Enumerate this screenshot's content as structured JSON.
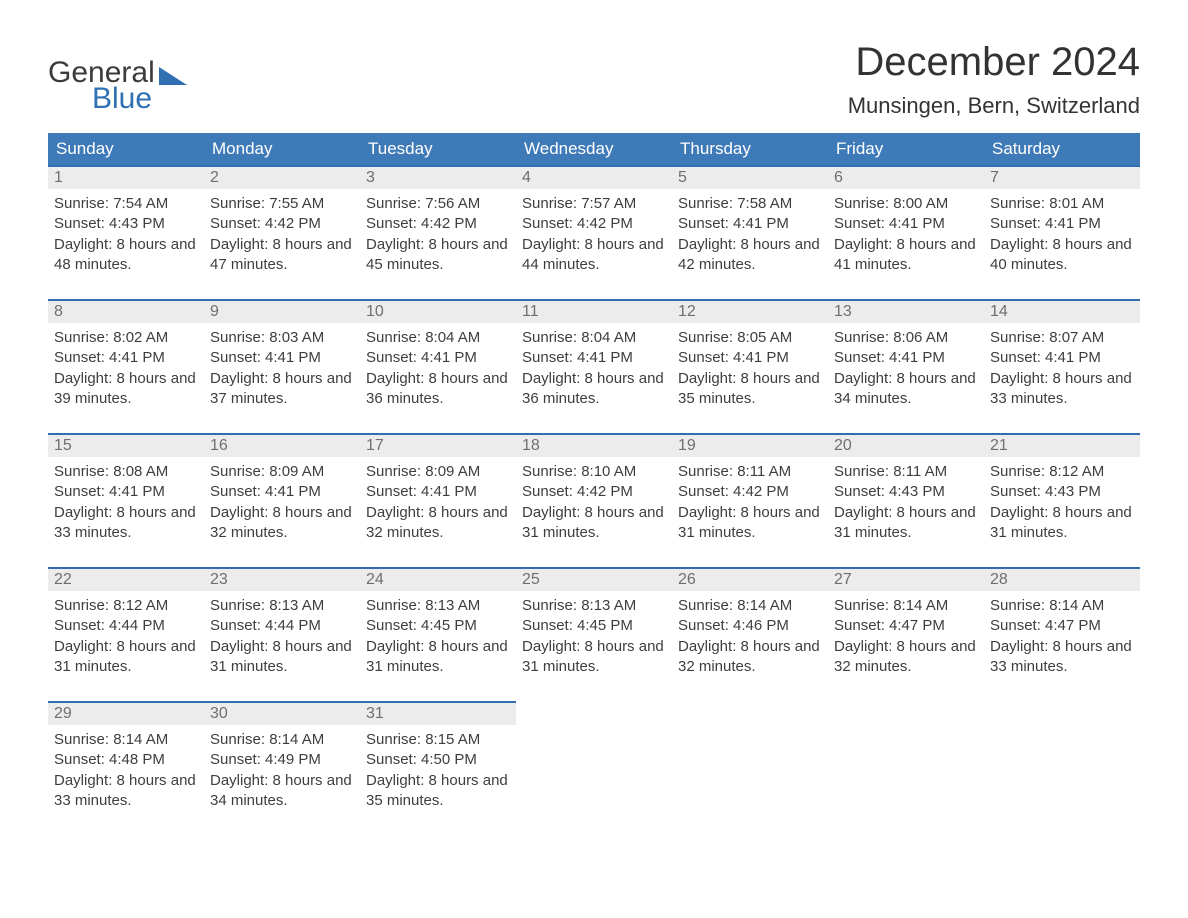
{
  "logo": {
    "word1": "General",
    "word2": "Blue"
  },
  "title": "December 2024",
  "location": "Munsingen, Bern, Switzerland",
  "colors": {
    "header_bg": "#3f7ab8",
    "header_text": "#ffffff",
    "row_separator": "#2f6fb2",
    "daynum_bg": "#ececec",
    "daynum_text": "#6f6f6f",
    "body_text": "#3e3e3e",
    "logo_blue": "#2f6fb2",
    "background": "#ffffff"
  },
  "day_headers": [
    "Sunday",
    "Monday",
    "Tuesday",
    "Wednesday",
    "Thursday",
    "Friday",
    "Saturday"
  ],
  "weeks": [
    [
      {
        "n": "1",
        "sr": "7:54 AM",
        "ss": "4:43 PM",
        "dl": "8 hours and 48 minutes."
      },
      {
        "n": "2",
        "sr": "7:55 AM",
        "ss": "4:42 PM",
        "dl": "8 hours and 47 minutes."
      },
      {
        "n": "3",
        "sr": "7:56 AM",
        "ss": "4:42 PM",
        "dl": "8 hours and 45 minutes."
      },
      {
        "n": "4",
        "sr": "7:57 AM",
        "ss": "4:42 PM",
        "dl": "8 hours and 44 minutes."
      },
      {
        "n": "5",
        "sr": "7:58 AM",
        "ss": "4:41 PM",
        "dl": "8 hours and 42 minutes."
      },
      {
        "n": "6",
        "sr": "8:00 AM",
        "ss": "4:41 PM",
        "dl": "8 hours and 41 minutes."
      },
      {
        "n": "7",
        "sr": "8:01 AM",
        "ss": "4:41 PM",
        "dl": "8 hours and 40 minutes."
      }
    ],
    [
      {
        "n": "8",
        "sr": "8:02 AM",
        "ss": "4:41 PM",
        "dl": "8 hours and 39 minutes."
      },
      {
        "n": "9",
        "sr": "8:03 AM",
        "ss": "4:41 PM",
        "dl": "8 hours and 37 minutes."
      },
      {
        "n": "10",
        "sr": "8:04 AM",
        "ss": "4:41 PM",
        "dl": "8 hours and 36 minutes."
      },
      {
        "n": "11",
        "sr": "8:04 AM",
        "ss": "4:41 PM",
        "dl": "8 hours and 36 minutes."
      },
      {
        "n": "12",
        "sr": "8:05 AM",
        "ss": "4:41 PM",
        "dl": "8 hours and 35 minutes."
      },
      {
        "n": "13",
        "sr": "8:06 AM",
        "ss": "4:41 PM",
        "dl": "8 hours and 34 minutes."
      },
      {
        "n": "14",
        "sr": "8:07 AM",
        "ss": "4:41 PM",
        "dl": "8 hours and 33 minutes."
      }
    ],
    [
      {
        "n": "15",
        "sr": "8:08 AM",
        "ss": "4:41 PM",
        "dl": "8 hours and 33 minutes."
      },
      {
        "n": "16",
        "sr": "8:09 AM",
        "ss": "4:41 PM",
        "dl": "8 hours and 32 minutes."
      },
      {
        "n": "17",
        "sr": "8:09 AM",
        "ss": "4:41 PM",
        "dl": "8 hours and 32 minutes."
      },
      {
        "n": "18",
        "sr": "8:10 AM",
        "ss": "4:42 PM",
        "dl": "8 hours and 31 minutes."
      },
      {
        "n": "19",
        "sr": "8:11 AM",
        "ss": "4:42 PM",
        "dl": "8 hours and 31 minutes."
      },
      {
        "n": "20",
        "sr": "8:11 AM",
        "ss": "4:43 PM",
        "dl": "8 hours and 31 minutes."
      },
      {
        "n": "21",
        "sr": "8:12 AM",
        "ss": "4:43 PM",
        "dl": "8 hours and 31 minutes."
      }
    ],
    [
      {
        "n": "22",
        "sr": "8:12 AM",
        "ss": "4:44 PM",
        "dl": "8 hours and 31 minutes."
      },
      {
        "n": "23",
        "sr": "8:13 AM",
        "ss": "4:44 PM",
        "dl": "8 hours and 31 minutes."
      },
      {
        "n": "24",
        "sr": "8:13 AM",
        "ss": "4:45 PM",
        "dl": "8 hours and 31 minutes."
      },
      {
        "n": "25",
        "sr": "8:13 AM",
        "ss": "4:45 PM",
        "dl": "8 hours and 31 minutes."
      },
      {
        "n": "26",
        "sr": "8:14 AM",
        "ss": "4:46 PM",
        "dl": "8 hours and 32 minutes."
      },
      {
        "n": "27",
        "sr": "8:14 AM",
        "ss": "4:47 PM",
        "dl": "8 hours and 32 minutes."
      },
      {
        "n": "28",
        "sr": "8:14 AM",
        "ss": "4:47 PM",
        "dl": "8 hours and 33 minutes."
      }
    ],
    [
      {
        "n": "29",
        "sr": "8:14 AM",
        "ss": "4:48 PM",
        "dl": "8 hours and 33 minutes."
      },
      {
        "n": "30",
        "sr": "8:14 AM",
        "ss": "4:49 PM",
        "dl": "8 hours and 34 minutes."
      },
      {
        "n": "31",
        "sr": "8:15 AM",
        "ss": "4:50 PM",
        "dl": "8 hours and 35 minutes."
      },
      null,
      null,
      null,
      null
    ]
  ],
  "labels": {
    "sunrise": "Sunrise: ",
    "sunset": "Sunset: ",
    "daylight": "Daylight: "
  }
}
